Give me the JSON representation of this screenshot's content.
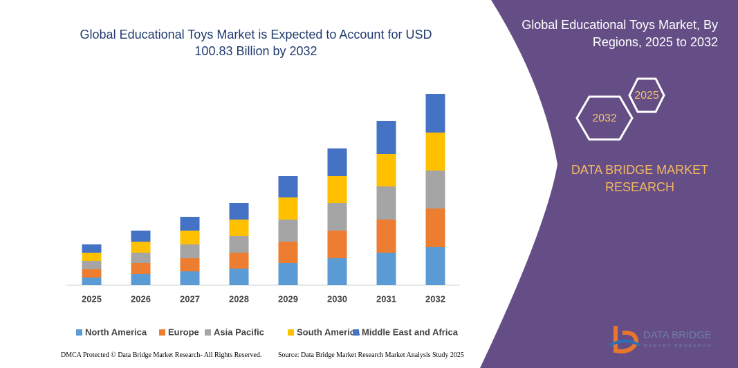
{
  "chart_data": {
    "type": "bar",
    "stacked": true,
    "title": "Global Educational Toys Market is Expected to Account for USD 100.83 Billion by 2032",
    "categories": [
      "2025",
      "2026",
      "2027",
      "2028",
      "2029",
      "2030",
      "2031",
      "2032"
    ],
    "series": [
      {
        "name": "North America",
        "color": "#5b9bd5",
        "values": [
          11,
          16,
          20,
          24,
          32,
          39,
          47,
          55
        ]
      },
      {
        "name": "Europe",
        "color": "#ed7d31",
        "values": [
          12,
          16,
          19,
          23,
          31,
          40,
          48,
          56
        ]
      },
      {
        "name": "Asia Pacific",
        "color": "#a5a5a5",
        "values": [
          12,
          15,
          20,
          24,
          32,
          40,
          48,
          55
        ]
      },
      {
        "name": "South America",
        "color": "#ffc000",
        "values": [
          12,
          16,
          20,
          24,
          32,
          39,
          47,
          55
        ]
      },
      {
        "name": "Middle East and Africa",
        "color": "#4472c4",
        "values": [
          12,
          16,
          20,
          24,
          31,
          40,
          48,
          56
        ]
      }
    ]
  },
  "panel": {
    "title": "Global Educational Toys Market, By Regions, 2025 to 2032",
    "hex_labels": [
      "2025",
      "2032"
    ],
    "brand": "DATA BRIDGE MARKET RESEARCH"
  },
  "logo": {
    "name": "DATA BRIDGE",
    "tagline": "MARKET RESEARCH"
  },
  "footer": {
    "dmca": "DMCA Protected © Data Bridge Market Research- All Rights Reserved.",
    "source": "Source: Data Bridge Market Research Market Analysis Study 2025"
  }
}
